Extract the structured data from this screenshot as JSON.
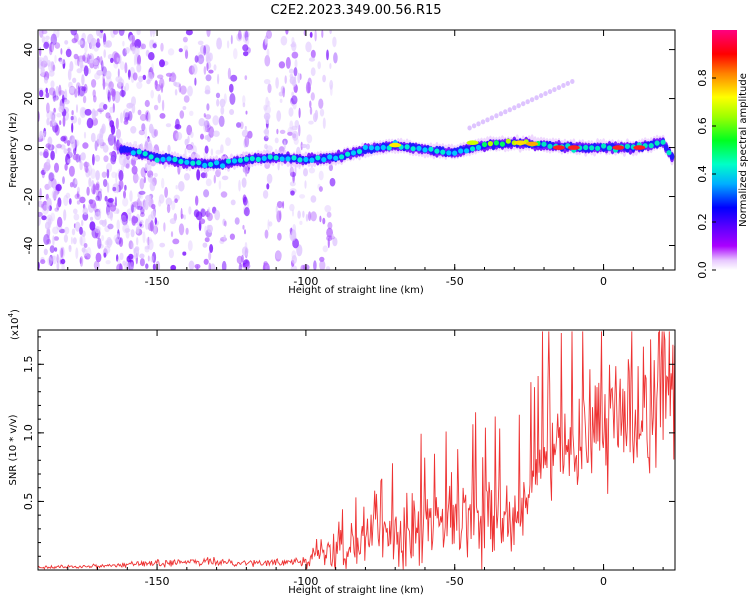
{
  "title": "C2E2.2023.349.00.56.R15",
  "chart_data": [
    {
      "type": "heatmap",
      "xlabel": "Height of straight line (km)",
      "ylabel": "Frequency (Hz)",
      "xlim": [
        -190,
        24
      ],
      "ylim": [
        -50,
        48
      ],
      "xticks": [
        -150,
        -100,
        -50,
        0
      ],
      "yticks": [
        -40,
        -20,
        0,
        20,
        40
      ],
      "ytick_labels": [
        "-40",
        "-20",
        "0",
        "20",
        "40"
      ],
      "colorbar": {
        "label": "Normalized spectral amplitude",
        "range": [
          0,
          1
        ],
        "ticks": [
          0.0,
          0.2,
          0.4,
          0.6,
          0.8
        ],
        "tick_labels": [
          "0.0",
          "0.2",
          "0.4",
          "0.6",
          "0.8"
        ],
        "colors": [
          "#ffffff",
          "#cc00ff",
          "#7700ff",
          "#0000ff",
          "#00c0ff",
          "#00ffc0",
          "#00ff00",
          "#c0ff00",
          "#ffff00",
          "#ff8000",
          "#ff0000",
          "#ff0090"
        ]
      },
      "ridge_frequency": {
        "x": [
          -160,
          -150,
          -140,
          -130,
          -120,
          -110,
          -100,
          -90,
          -80,
          -70,
          -60,
          -50,
          -40,
          -30,
          -20,
          -10,
          0,
          10,
          20,
          23
        ],
        "y": [
          -1,
          -4,
          -6,
          -7,
          -5,
          -4,
          -5,
          -4,
          -1,
          1,
          -1,
          -2,
          1,
          2,
          1,
          0,
          0,
          0,
          2,
          -4
        ]
      }
    },
    {
      "type": "line",
      "xlabel": "Height of straight line (km)",
      "ylabel": "SNR (10 * v/v)",
      "multiplier_label": "(x10",
      "multiplier_exp": "4",
      "xlim": [
        -190,
        24
      ],
      "ylim": [
        0,
        1.75
      ],
      "xticks": [
        -150,
        -100,
        -50,
        0
      ],
      "yticks": [
        0.5,
        1.0,
        1.5
      ],
      "ytick_labels": [
        "0.5",
        "1.0",
        "1.5"
      ],
      "color": "#ee3333",
      "series": {
        "x": [
          -190,
          -170,
          -150,
          -130,
          -110,
          -100,
          -90,
          -80,
          -70,
          -60,
          -50,
          -40,
          -30,
          -25,
          -20,
          -15,
          -10,
          -5,
          0,
          5,
          10,
          15,
          20,
          24
        ],
        "y": [
          0.02,
          0.03,
          0.05,
          0.06,
          0.05,
          0.08,
          0.15,
          0.25,
          0.3,
          0.32,
          0.35,
          0.38,
          0.32,
          0.5,
          0.8,
          0.85,
          0.9,
          1.0,
          1.05,
          1.1,
          1.15,
          1.25,
          1.35,
          1.4
        ]
      }
    }
  ]
}
